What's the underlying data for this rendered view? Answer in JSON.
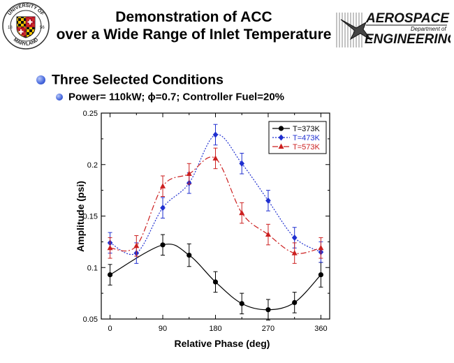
{
  "header": {
    "title_line1": "Demonstration of ACC",
    "title_line2": "over a Wide Range of Inlet Temperature",
    "umd_logo": {
      "top_text": "UNIVERSITY OF",
      "bottom_text": "MARYLAND",
      "year_left": "18",
      "year_right": "56"
    },
    "ae_logo": {
      "word1": "AEROSPACE",
      "dept": "Department of",
      "word2": "ENGINEERING"
    }
  },
  "bullets": {
    "level1": "Three Selected Conditions",
    "level2": "Power= 110kW;  ϕ=0.7;  Controller Fuel=20%"
  },
  "colors": {
    "bullet": "#4466dd",
    "black": "#000000",
    "blue": "#1f2fd0",
    "red": "#cc1f1f"
  },
  "chart_data": {
    "type": "line",
    "xlabel": "Relative Phase (deg)",
    "ylabel": "Amplitude (psi)",
    "xlim": [
      -15,
      375
    ],
    "ylim": [
      0.05,
      0.25
    ],
    "xticks": [
      0,
      90,
      180,
      270,
      360
    ],
    "yticks": [
      0.05,
      0.1,
      0.15,
      0.2,
      0.25
    ],
    "ytick_labels": [
      "0.05",
      "0.1",
      "0.15",
      "0.2",
      "0.25"
    ],
    "legend_position": "top-right",
    "series": [
      {
        "name": "T=373K",
        "color": "#000000",
        "marker": "circle",
        "dash": "solid",
        "x": [
          0,
          90,
          135,
          180,
          225,
          270,
          315,
          360
        ],
        "y": [
          0.093,
          0.122,
          0.112,
          0.086,
          0.065,
          0.059,
          0.066,
          0.093
        ],
        "err": [
          0.01,
          0.01,
          0.011,
          0.01,
          0.01,
          0.01,
          0.01,
          0.012
        ]
      },
      {
        "name": "T=473K",
        "color": "#1f2fd0",
        "marker": "diamond",
        "dash": "dot",
        "x": [
          0,
          45,
          90,
          135,
          180,
          225,
          270,
          315,
          360
        ],
        "y": [
          0.124,
          0.114,
          0.158,
          0.182,
          0.229,
          0.201,
          0.165,
          0.129,
          0.115
        ],
        "err": [
          0.01,
          0.01,
          0.01,
          0.01,
          0.01,
          0.01,
          0.01,
          0.01,
          0.01
        ]
      },
      {
        "name": "T=573K",
        "color": "#cc1f1f",
        "marker": "triangle",
        "dash": "dashdot",
        "x": [
          0,
          45,
          90,
          135,
          180,
          225,
          270,
          315,
          360
        ],
        "y": [
          0.119,
          0.121,
          0.179,
          0.191,
          0.206,
          0.153,
          0.132,
          0.114,
          0.119
        ],
        "err": [
          0.01,
          0.01,
          0.01,
          0.01,
          0.01,
          0.01,
          0.01,
          0.01,
          0.01
        ]
      }
    ]
  }
}
